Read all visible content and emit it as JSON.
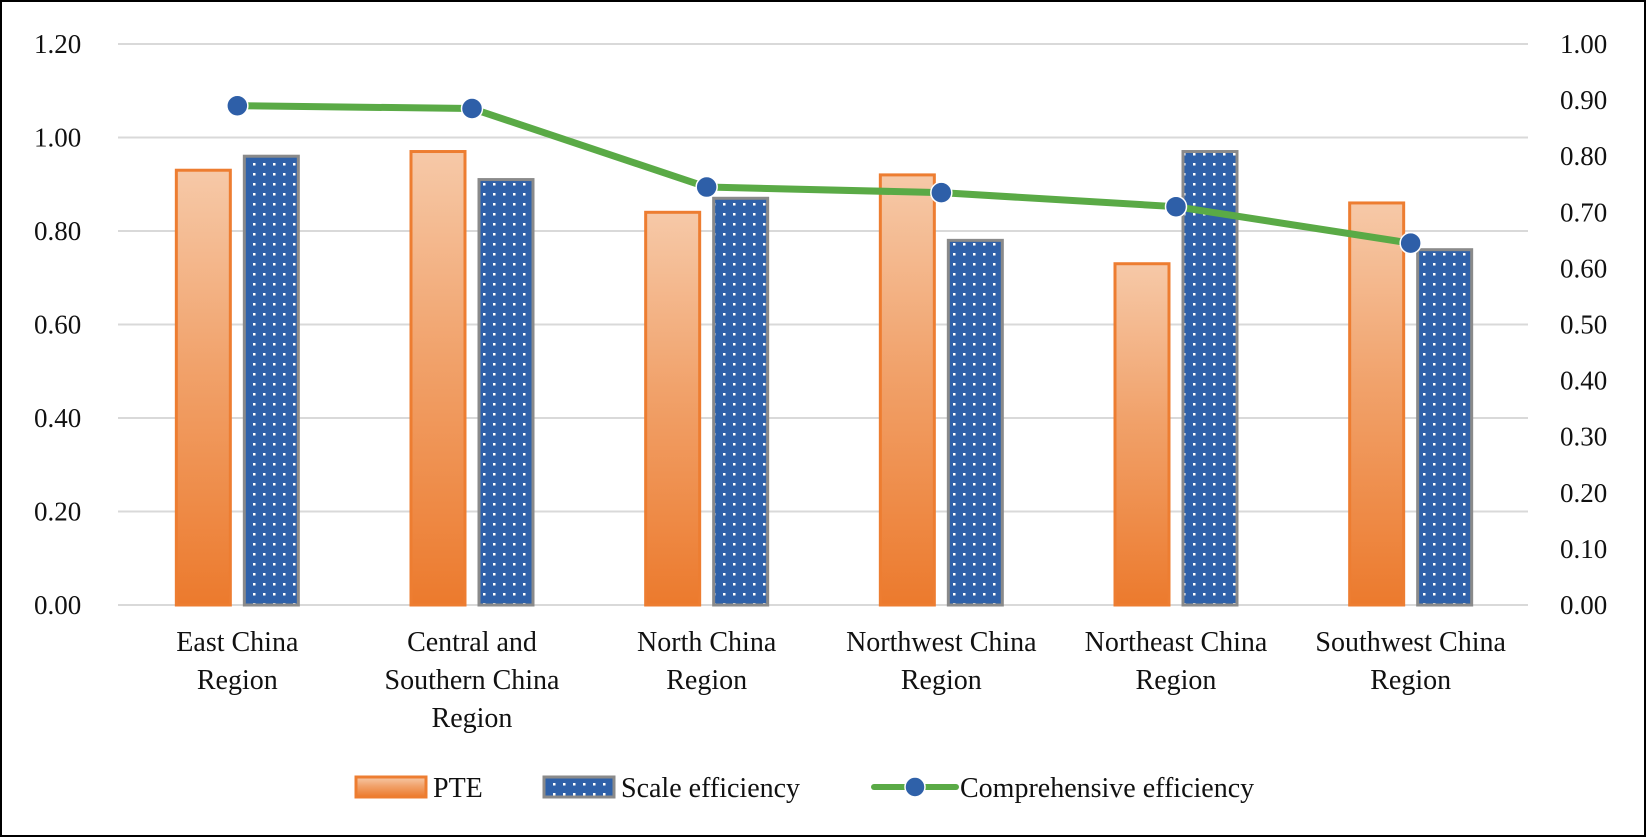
{
  "chart_data": {
    "type": "bar",
    "categories": [
      [
        "East China",
        "Region"
      ],
      [
        "Central and",
        "Southern China",
        "Region"
      ],
      [
        "North China",
        "Region"
      ],
      [
        "Northwest China",
        "Region"
      ],
      [
        "Northeast China",
        "Region"
      ],
      [
        "Southwest China",
        "Region"
      ]
    ],
    "series": [
      {
        "name": "PTE",
        "axis": "left",
        "kind": "bar",
        "values": [
          0.93,
          0.97,
          0.84,
          0.92,
          0.73,
          0.86
        ]
      },
      {
        "name": "Scale efficiency",
        "axis": "left",
        "kind": "bar",
        "values": [
          0.96,
          0.91,
          0.87,
          0.78,
          0.97,
          0.76
        ]
      },
      {
        "name": "Comprehensive efficiency",
        "axis": "right",
        "kind": "line",
        "values": [
          0.89,
          0.885,
          0.745,
          0.735,
          0.71,
          0.645
        ]
      }
    ],
    "left_axis": {
      "min": 0,
      "max": 1.2,
      "ticks": [
        "0.00",
        "0.20",
        "0.40",
        "0.60",
        "0.80",
        "1.00",
        "1.20"
      ]
    },
    "right_axis": {
      "min": 0,
      "max": 1.0,
      "ticks": [
        "0.00",
        "0.10",
        "0.20",
        "0.30",
        "0.40",
        "0.50",
        "0.60",
        "0.70",
        "0.80",
        "0.90",
        "1.00"
      ]
    },
    "grid": true,
    "legend": {
      "position": "bottom",
      "items": [
        "PTE",
        "Scale efficiency",
        "Comprehensive efficiency"
      ]
    },
    "colors": {
      "pte": "#ED7D31",
      "pte_light": "#F6C7A5",
      "scale": "#2E5FA8",
      "scale_border": "#8A8A8A",
      "line": "#5AAA46",
      "marker": "#2E5FA8",
      "grid": "#D9D9D9"
    }
  }
}
